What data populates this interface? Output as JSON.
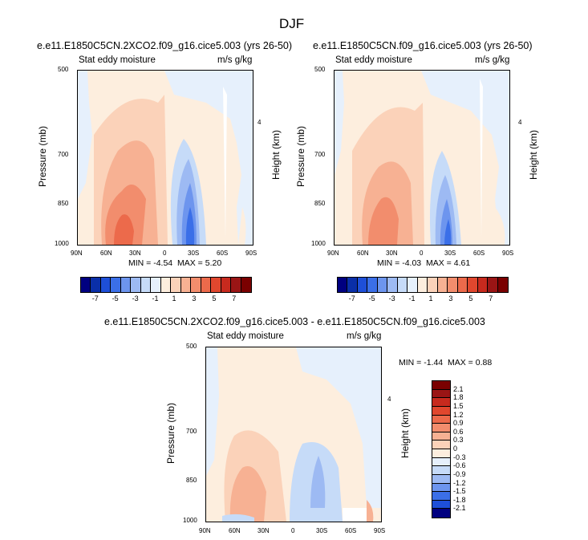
{
  "figure_title": "DJF",
  "chart_data": [
    {
      "type": "heatmap",
      "title": "e.e11.E1850C5CN.2XCO2.f09_g16.cice5.003 (yrs 26-50)",
      "left_label": "Stat eddy moisture",
      "right_label": "m/s g/kg",
      "ylabel": "Pressure (mb)",
      "ylabel_right": "Height (km)",
      "x_ticks": [
        "90N",
        "60N",
        "30N",
        "0",
        "30S",
        "60S",
        "90S"
      ],
      "y_ticks": [
        "500",
        "700",
        "850",
        "1000"
      ],
      "y_ticks_right": [
        "4"
      ],
      "min_label": "MIN =",
      "min_value": "-4.54",
      "max_label": "MAX =",
      "max_value": "5.20"
    },
    {
      "type": "heatmap",
      "title": "e.e11.E1850C5CN.f09_g16.cice5.003 (yrs 26-50)",
      "left_label": "Stat eddy moisture",
      "right_label": "m/s g/kg",
      "ylabel": "Pressure (mb)",
      "ylabel_right": "Height (km)",
      "x_ticks": [
        "90N",
        "60N",
        "30N",
        "0",
        "30S",
        "60S",
        "90S"
      ],
      "y_ticks": [
        "500",
        "700",
        "850",
        "1000"
      ],
      "y_ticks_right": [
        "4"
      ],
      "min_label": "MIN =",
      "min_value": "-4.03",
      "max_label": "MAX =",
      "max_value": "4.61"
    },
    {
      "type": "heatmap",
      "title": "e.e11.E1850C5CN.2XCO2.f09_g16.cice5.003 - e.e11.E1850C5CN.f09_g16.cice5.003",
      "left_label": "Stat eddy moisture",
      "right_label": "m/s g/kg",
      "ylabel": "Pressure (mb)",
      "ylabel_right": "Height (km)",
      "x_ticks": [
        "90N",
        "60N",
        "30N",
        "0",
        "30S",
        "60S",
        "90S"
      ],
      "y_ticks": [
        "500",
        "700",
        "850",
        "1000"
      ],
      "y_ticks_right": [
        "4"
      ],
      "min_label": "MIN =",
      "min_value": "-1.44",
      "max_label": "MAX =",
      "max_value": "0.88"
    }
  ],
  "colorbar_top": {
    "labels": [
      "-7",
      "-5",
      "-3",
      "-1",
      "1",
      "3",
      "5",
      "7"
    ],
    "colors": [
      "#000080",
      "#0a2fa8",
      "#1e4fd8",
      "#3b6fe8",
      "#6d95ee",
      "#9dbaf3",
      "#c6dbf8",
      "#e6f0fc",
      "#fdeede",
      "#fbd2b9",
      "#f7b193",
      "#f28d6d",
      "#ec6a4b",
      "#e0472e",
      "#c72a1e",
      "#9a1515",
      "#7a0000"
    ]
  },
  "colorbar_diff": {
    "labels": [
      "2.1",
      "1.8",
      "1.5",
      "1.2",
      "0.9",
      "0.6",
      "0.3",
      "0",
      "-0.3",
      "-0.6",
      "-0.9",
      "-1.2",
      "-1.5",
      "-1.8",
      "-2.1"
    ],
    "colors": [
      "#7a0000",
      "#9a1515",
      "#c72a1e",
      "#e0472e",
      "#ec6a4b",
      "#f28d6d",
      "#f7b193",
      "#fbd2b9",
      "#fdeede",
      "#e6f0fc",
      "#c6dbf8",
      "#9dbaf3",
      "#6d95ee",
      "#3b6fe8",
      "#1e4fd8",
      "#000080"
    ]
  }
}
